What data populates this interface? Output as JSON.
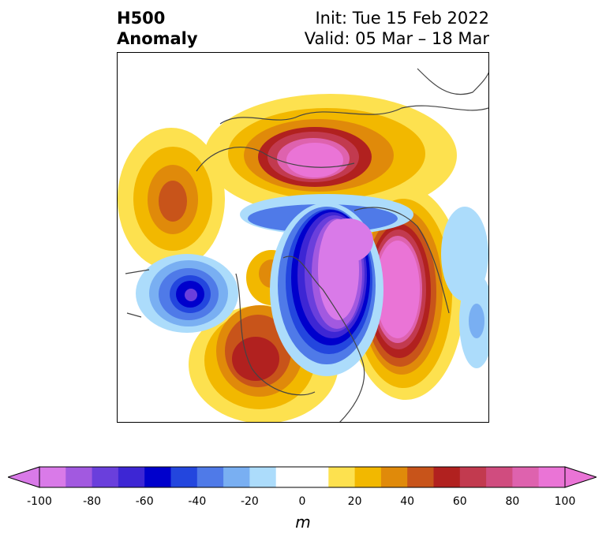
{
  "title": {
    "left_line1": "H500",
    "left_line2": "Anomaly",
    "init": "Init: Tue 15 Feb 2022",
    "valid": "Valid: 05 Mar – 18 Mar"
  },
  "colorbar": {
    "ticks": [
      "-100",
      "-80",
      "-60",
      "-40",
      "-20",
      "0",
      "20",
      "40",
      "60",
      "80",
      "100"
    ],
    "units": "m",
    "colors": [
      "#d97ae8",
      "#a259e0",
      "#6a3fdc",
      "#3d26d4",
      "#0000cc",
      "#2346de",
      "#4f7ae8",
      "#79aff2",
      "#acdcfb",
      "#ffffff",
      "#ffffff",
      "#fde14f",
      "#f2b800",
      "#e08a0a",
      "#c8541a",
      "#b1211f",
      "#c23a4f",
      "#d04c7f",
      "#de62ae",
      "#ea74d6"
    ]
  }
}
